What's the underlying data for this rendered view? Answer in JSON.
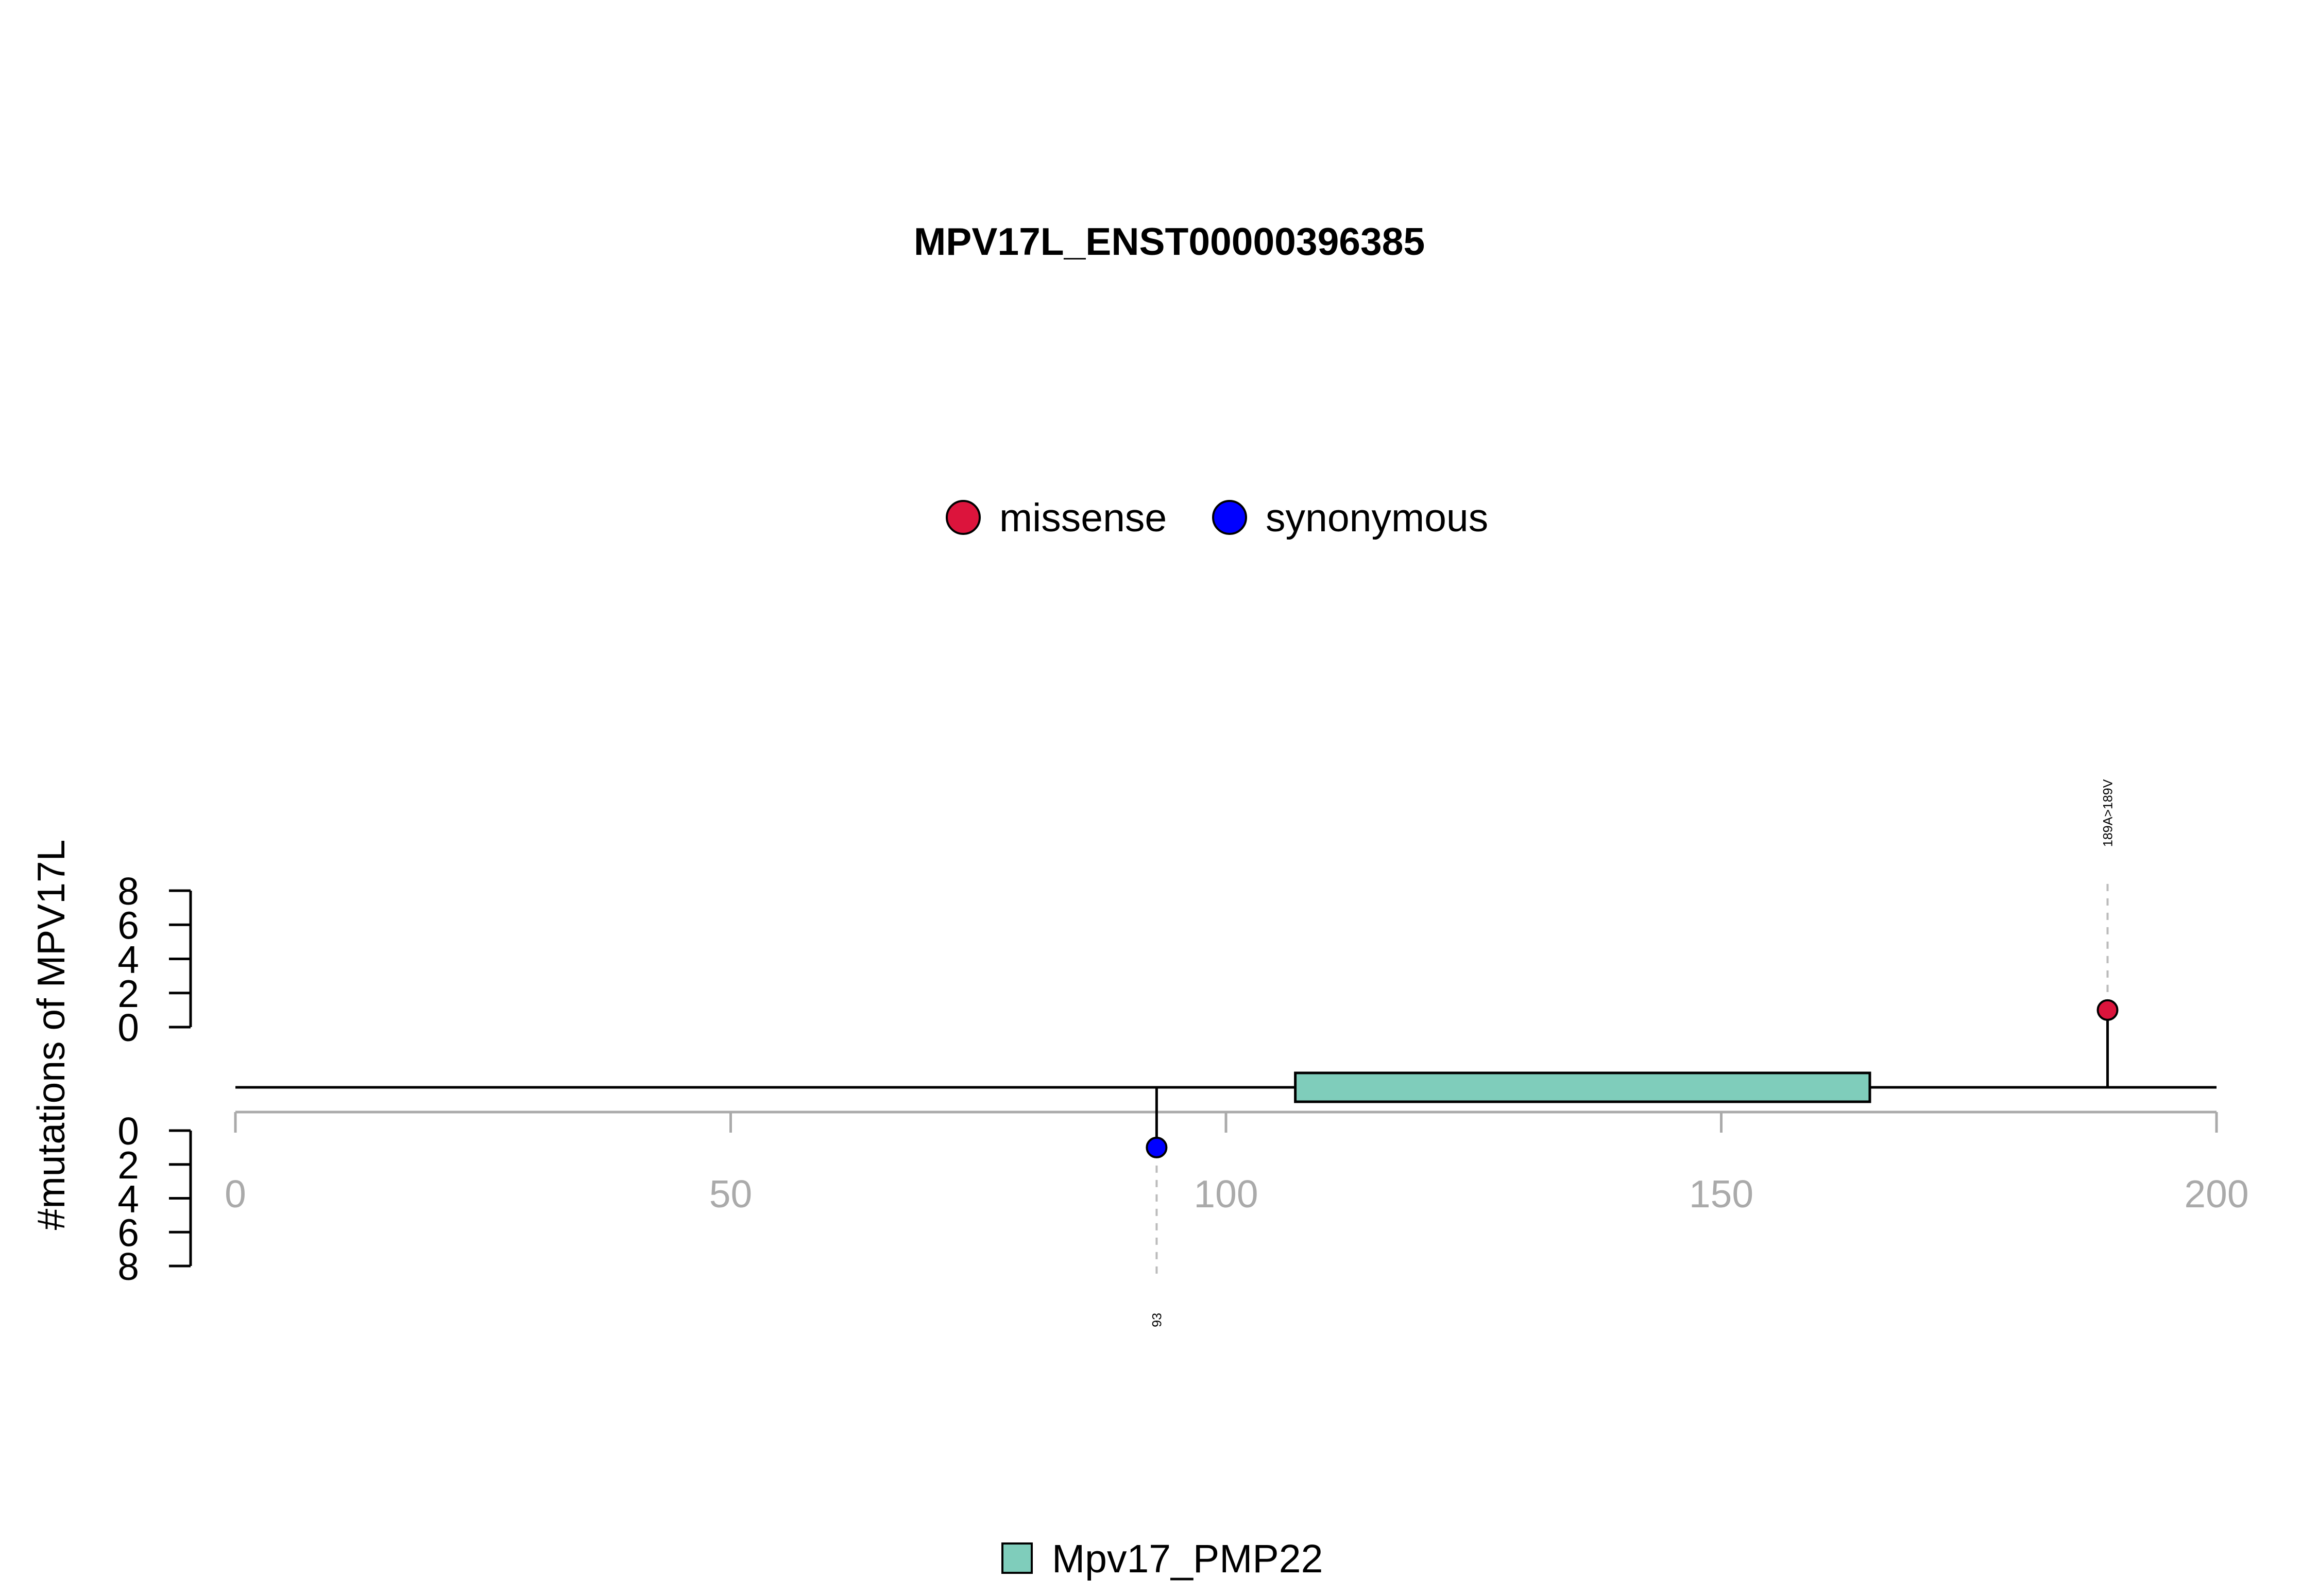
{
  "chart_data": {
    "type": "lollipop",
    "title": "MPV17L_ENST00000396385",
    "ylabel": "#mutations of MPV17L",
    "xlim": [
      0,
      200
    ],
    "x_ticks": [
      0,
      50,
      100,
      150,
      200
    ],
    "count_ticks": [
      0,
      2,
      4,
      6,
      8
    ],
    "count_range": [
      0,
      8
    ],
    "legend": [
      {
        "name": "missense",
        "color": "#DC143C"
      },
      {
        "name": "synonymous",
        "color": "#0000FF"
      }
    ],
    "mutations": [
      {
        "position": 189,
        "count": 1,
        "type": "missense",
        "side": "top",
        "label": "189A>189V"
      },
      {
        "position": 93,
        "count": 1,
        "type": "synonymous",
        "side": "bottom",
        "label": "93"
      }
    ],
    "domains": [
      {
        "name": "Mpv17_PMP22",
        "start": 107,
        "end": 165,
        "color": "#7FCDBB"
      }
    ]
  }
}
